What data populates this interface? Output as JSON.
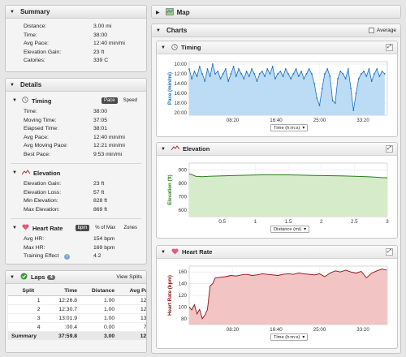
{
  "summary": {
    "title": "Summary",
    "rows": [
      {
        "label": "Distance:",
        "value": "3.00 mi"
      },
      {
        "label": "Time:",
        "value": "38:00"
      },
      {
        "label": "Avg Pace:",
        "value": "12:40 min/mi"
      },
      {
        "label": "Elevation Gain:",
        "value": "23 ft"
      },
      {
        "label": "Calories:",
        "value": "339 C"
      }
    ]
  },
  "details": {
    "title": "Details",
    "timing": {
      "title": "Timing",
      "toggle_pace": "Pace",
      "toggle_speed": "Speed",
      "rows": [
        {
          "label": "Time:",
          "value": "38:00"
        },
        {
          "label": "Moving Time:",
          "value": "37:05"
        },
        {
          "label": "Elapsed Time:",
          "value": "38:01"
        },
        {
          "label": "Avg Pace:",
          "value": "12:40 min/mi"
        },
        {
          "label": "Avg Moving Pace:",
          "value": "12:21 min/mi"
        },
        {
          "label": "Best Pace:",
          "value": "9:53 min/mi"
        }
      ]
    },
    "elevation": {
      "title": "Elevation",
      "rows": [
        {
          "label": "Elevation Gain:",
          "value": "23 ft"
        },
        {
          "label": "Elevation Loss:",
          "value": "57 ft"
        },
        {
          "label": "Min Elevation:",
          "value": "828 ft"
        },
        {
          "label": "Max Elevation:",
          "value": "869 ft"
        }
      ]
    },
    "heart_rate": {
      "title": "Heart Rate",
      "toggle_bpm": "bpm",
      "toggle_pct": "% of Max",
      "toggle_zones": "Zones",
      "rows": [
        {
          "label": "Avg HR:",
          "value": "154 bpm"
        },
        {
          "label": "Max HR:",
          "value": "169 bpm"
        },
        {
          "label": "Training Effect",
          "value": "4.2"
        }
      ]
    }
  },
  "laps": {
    "title": "Laps",
    "count": "4",
    "view_splits": "View Splits",
    "columns": [
      "Split",
      "Time",
      "Distance",
      "Avg Pace"
    ],
    "rows": [
      [
        "1",
        "12:26.8",
        "1.00",
        "12:27"
      ],
      [
        "2",
        "12:30.7",
        "1.00",
        "12:31"
      ],
      [
        "3",
        "13:01.9",
        "1.00",
        "13:02"
      ],
      [
        "4",
        ":00.4",
        "0.00",
        "7:39"
      ]
    ],
    "summary": [
      "Summary",
      "37:59.8",
      "3.00",
      "12:40"
    ]
  },
  "map": {
    "title": "Map"
  },
  "charts": {
    "title": "Charts",
    "average_label": "Average"
  },
  "colors": {
    "timing_line": "#1a6fbf",
    "timing_fill": "#bcdcf6",
    "elevation_line": "#2e7d1a",
    "elevation_fill": "#d5ebc9",
    "hr_line": "#8c0f0f",
    "hr_fill": "#f2c4c4"
  },
  "chart_data": [
    {
      "type": "line",
      "title": "Timing",
      "ylabel": "Pace (min/mi)",
      "xlabel": "Time (h:m:s)",
      "x_ticks": [
        "08:20",
        "16:40",
        "25:00",
        "33:20"
      ],
      "y_ticks": [
        "10:00",
        "12:00",
        "14:00",
        "16:00",
        "18:00",
        "20:00"
      ],
      "x_range_min": [
        0,
        38
      ],
      "y_range_min": [
        9.5,
        20.5
      ],
      "y_inverted": true,
      "x": [
        0,
        0.5,
        1,
        1.5,
        2,
        2.5,
        3,
        3.5,
        4,
        4.5,
        5,
        5.5,
        6,
        6.5,
        7,
        7.5,
        8,
        8.5,
        9,
        9.5,
        10,
        10.5,
        11,
        11.5,
        12,
        12.5,
        13,
        13.5,
        14,
        14.5,
        15,
        15.5,
        16,
        16.5,
        17,
        17.5,
        18,
        18.5,
        19,
        19.5,
        20,
        20.5,
        21,
        21.5,
        22,
        22.5,
        23,
        23.5,
        24,
        24.5,
        25,
        25.5,
        26,
        26.5,
        27,
        27.5,
        28,
        28.5,
        29,
        29.5,
        30,
        30.5,
        31,
        31.5,
        32,
        32.5,
        33,
        33.5,
        34,
        34.5,
        35,
        35.5,
        36,
        36.5,
        37,
        37.5
      ],
      "y": [
        11,
        13,
        11.5,
        12.5,
        10.5,
        12,
        13.5,
        11,
        12.5,
        10,
        12,
        11.5,
        13,
        12,
        11,
        13.5,
        12,
        10.5,
        12.5,
        11,
        12,
        13,
        11.5,
        12.5,
        11,
        12,
        13.5,
        12,
        11.5,
        12.5,
        11,
        12,
        10.5,
        13,
        12,
        11.5,
        12.5,
        11,
        12,
        13,
        12,
        11,
        12.5,
        11.5,
        13,
        12,
        11,
        12,
        14,
        17,
        18.5,
        15,
        12,
        11,
        12.5,
        17.5,
        18,
        13,
        11.5,
        12,
        13,
        11,
        15,
        19.5,
        16,
        13,
        12,
        11.5,
        12.5,
        11,
        13.5,
        12,
        11,
        12.5,
        11.5,
        12
      ]
    },
    {
      "type": "area",
      "title": "Elevation",
      "ylabel": "Elevation (ft)",
      "xlabel": "Distance (mi)",
      "x_ticks": [
        "0.5",
        "1",
        "1.5",
        "2",
        "2.5",
        "3"
      ],
      "y_ticks": [
        "900",
        "800",
        "700",
        "600"
      ],
      "x_range": [
        0,
        3
      ],
      "y_range": [
        550,
        950
      ],
      "x": [
        0,
        0.05,
        0.1,
        0.2,
        0.3,
        0.5,
        0.7,
        0.9,
        1.1,
        1.3,
        1.5,
        1.7,
        1.9,
        2.1,
        2.3,
        2.5,
        2.7,
        2.9,
        3.0
      ],
      "y": [
        869,
        862,
        852,
        848,
        852,
        855,
        858,
        860,
        862,
        863,
        862,
        860,
        858,
        856,
        855,
        852,
        848,
        842,
        840
      ]
    },
    {
      "type": "area",
      "title": "Heart Rate",
      "ylabel": "Heart Rate (bpm)",
      "xlabel": "Time (h:m:s)",
      "x_ticks": [
        "08:20",
        "16:40",
        "25:00",
        "33:20"
      ],
      "y_ticks": [
        "160",
        "140",
        "120",
        "100",
        "80"
      ],
      "x_range_min": [
        0,
        38
      ],
      "y_range": [
        70,
        170
      ],
      "x": [
        0,
        0.5,
        1,
        1.5,
        2,
        2.5,
        3,
        3.5,
        4,
        4.5,
        5,
        6,
        7,
        8,
        9,
        10,
        11,
        12,
        13,
        14,
        15,
        16,
        17,
        18,
        19,
        20,
        21,
        22,
        23,
        24,
        25,
        26,
        27,
        28,
        29,
        30,
        31,
        32,
        33,
        34,
        35,
        36,
        37,
        37.9
      ],
      "y": [
        100,
        95,
        104,
        88,
        96,
        80,
        86,
        96,
        136,
        140,
        150,
        151,
        152,
        154,
        153,
        155,
        156,
        154,
        155,
        157,
        156,
        155,
        154,
        156,
        157,
        156,
        158,
        157,
        156,
        155,
        157,
        152,
        158,
        162,
        160,
        163,
        160,
        158,
        161,
        150,
        158,
        162,
        165,
        163
      ]
    }
  ]
}
